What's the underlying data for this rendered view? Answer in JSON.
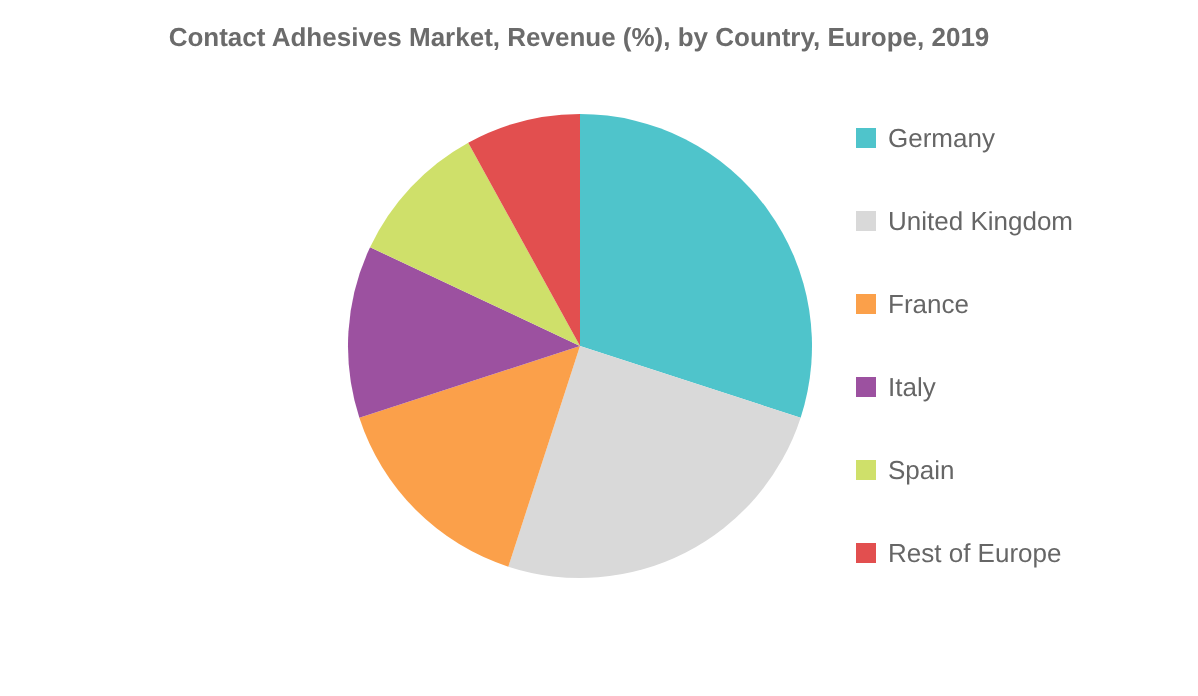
{
  "chart_data": {
    "type": "pie",
    "title": "Contact Adhesives Market, Revenue (%), by Country, Europe, 2019",
    "categories": [
      "Germany",
      "United Kingdom",
      "France",
      "Italy",
      "Spain",
      "Rest of Europe"
    ],
    "values": [
      30,
      25,
      15,
      12,
      10,
      8
    ],
    "colors": [
      "#4fc4cb",
      "#d9d9d9",
      "#fba04a",
      "#9c51a0",
      "#cfe06a",
      "#e24f4f"
    ],
    "legend": "right"
  }
}
